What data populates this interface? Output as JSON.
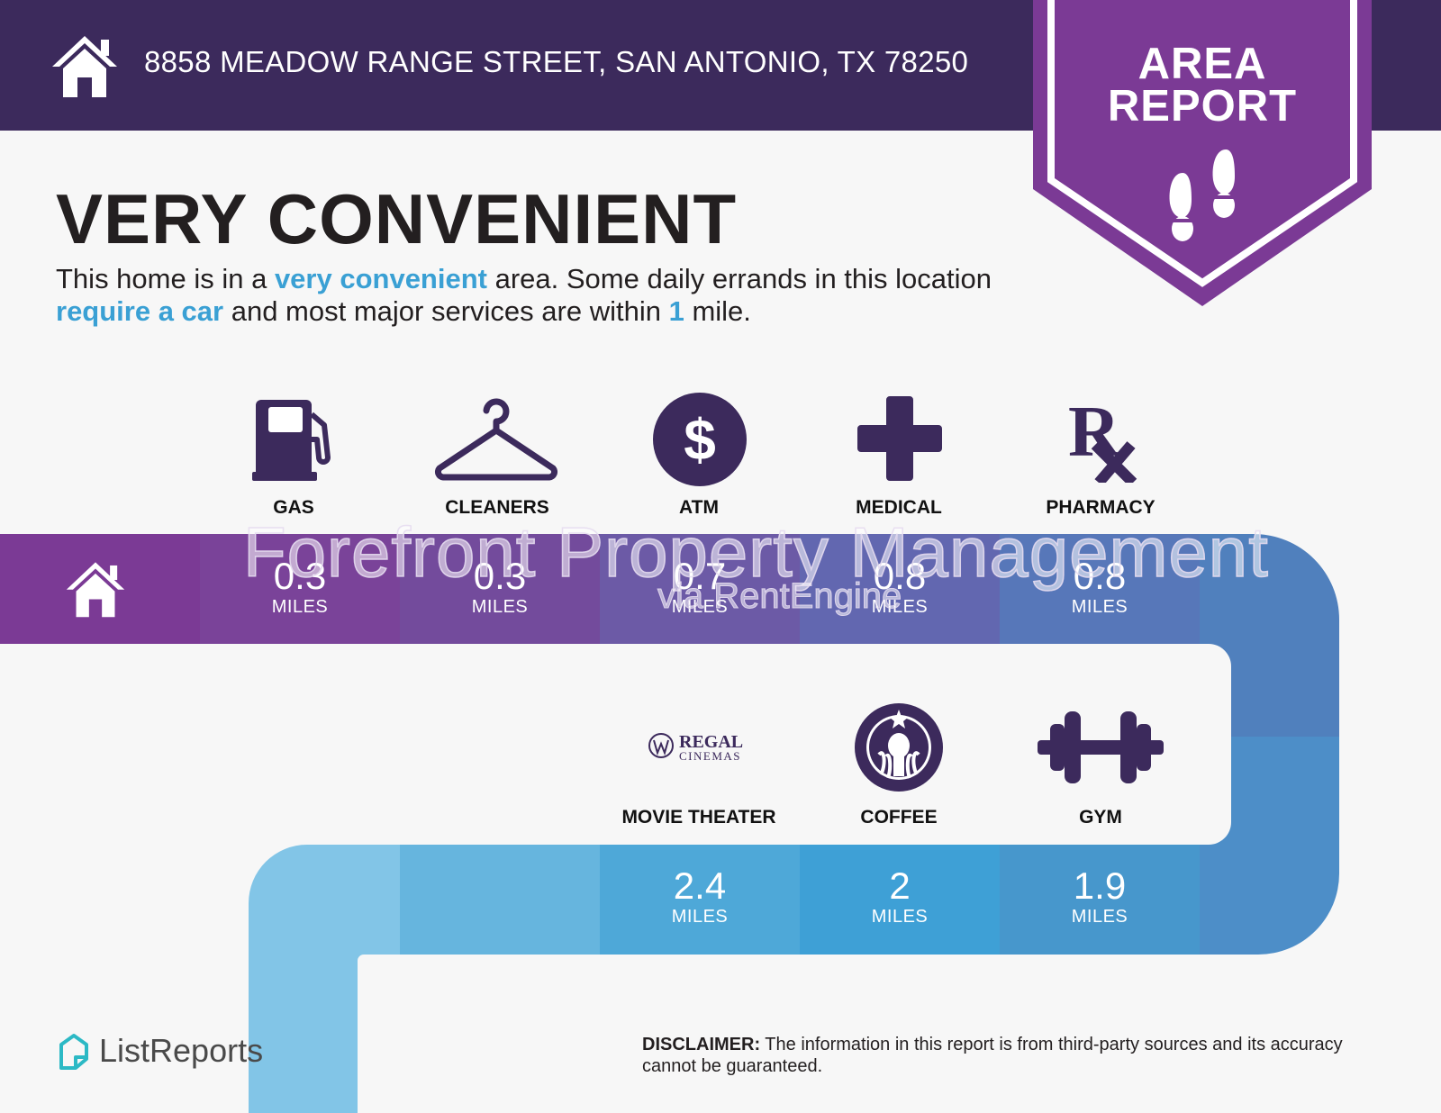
{
  "header": {
    "address": "8858 MEADOW RANGE STREET, SAN ANTONIO, TX 78250",
    "home_icon": "home-icon"
  },
  "banner": {
    "line1": "AREA",
    "line2": "REPORT",
    "icon": "footprints-icon"
  },
  "headline": "VERY CONVENIENT",
  "description": {
    "part1": "This home is in a ",
    "hl1": "very convenient",
    "part2": " area. Some daily errands in this location ",
    "hl2": "require a car",
    "part3": " and most major services are within ",
    "hl3": "1",
    "part4": " mile."
  },
  "unit_label": "MILES",
  "row1": [
    {
      "label": "GAS",
      "value": "0.3",
      "icon": "gas-pump-icon"
    },
    {
      "label": "CLEANERS",
      "value": "0.3",
      "icon": "hanger-icon"
    },
    {
      "label": "ATM",
      "value": "0.7",
      "icon": "dollar-icon"
    },
    {
      "label": "MEDICAL",
      "value": "0.8",
      "icon": "medical-cross-icon"
    },
    {
      "label": "PHARMACY",
      "value": "0.8",
      "icon": "rx-icon"
    }
  ],
  "row2": [
    {
      "label": "MOVIE THEATER",
      "value": "2.4",
      "icon": "regal-cinemas-logo",
      "logo_line1": "REGAL",
      "logo_line2": "CINEMAS"
    },
    {
      "label": "COFFEE",
      "value": "2",
      "icon": "starbucks-logo"
    },
    {
      "label": "GYM",
      "value": "1.9",
      "icon": "dumbbell-icon"
    }
  ],
  "watermark": {
    "line1": "Forefront Property Management",
    "line2": "via RentEngine"
  },
  "footer": {
    "brand": "ListReports",
    "disclaimer_label": "DISCLAIMER:",
    "disclaimer_text": " The information in this report is from third-party sources and its accuracy cannot be guaranteed."
  },
  "colors": {
    "header_bg": "#3c2a5c",
    "banner_purple": "#7b3a95",
    "icon_purple": "#3c2a5c",
    "highlight_blue": "#3aa0d4"
  }
}
